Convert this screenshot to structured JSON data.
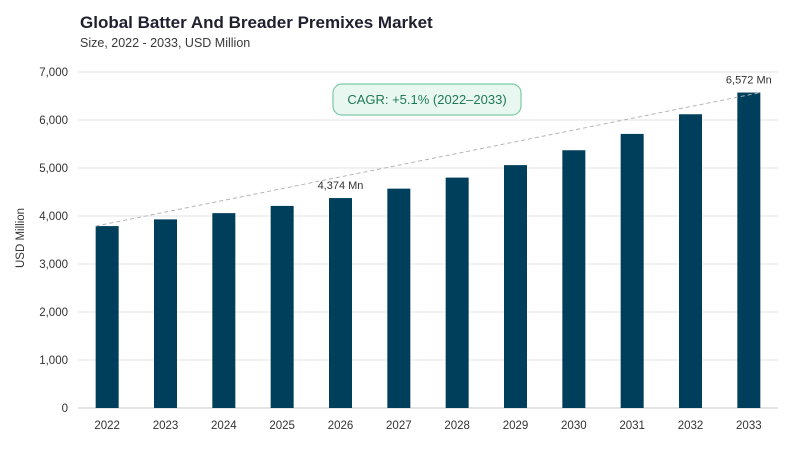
{
  "chart_data": {
    "type": "bar",
    "title": "Global Batter And Breader Premixes Market",
    "subtitle": "Size, 2022 - 2033, USD Million",
    "ylabel": "USD Million",
    "xlabel": "",
    "ylim": [
      0,
      7000
    ],
    "yticks": [
      0,
      1000,
      2000,
      3000,
      4000,
      5000,
      6000,
      7000
    ],
    "ytick_labels": [
      "0",
      "1,000",
      "2,000",
      "3,000",
      "4,000",
      "5,000",
      "6,000",
      "7,000"
    ],
    "categories": [
      "2022",
      "2023",
      "2024",
      "2025",
      "2026",
      "2027",
      "2028",
      "2029",
      "2030",
      "2031",
      "2032",
      "2033"
    ],
    "values": [
      3790,
      3930,
      4060,
      4210,
      4374,
      4570,
      4800,
      5060,
      5370,
      5710,
      6120,
      6572
    ],
    "bar_color": "#003f5c",
    "grid": true,
    "data_labels": [
      {
        "category": "2026",
        "text": "4,374 Mn"
      },
      {
        "category": "2033",
        "text": "6,572 Mn"
      }
    ],
    "trend_line": {
      "from": "2022",
      "to": "2033",
      "style": "dashed"
    },
    "annotation": {
      "text": "CAGR: +5.1% (2022–2033)",
      "fill": "#e9f7f1",
      "border": "#7cc9a7",
      "text_color": "#1f7a55"
    }
  }
}
